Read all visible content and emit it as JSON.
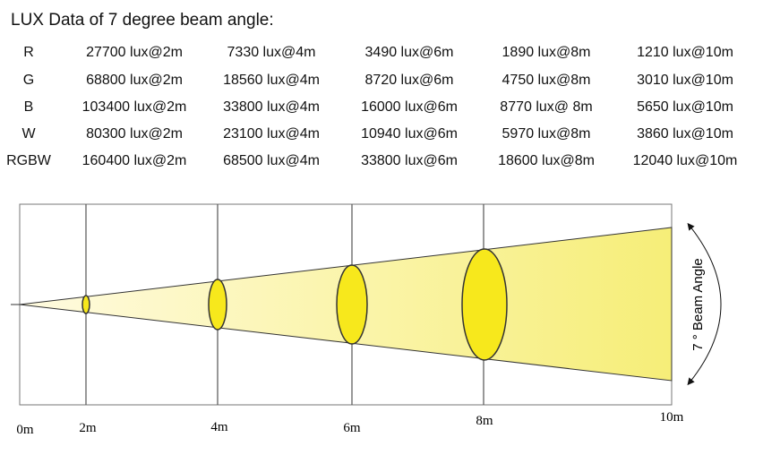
{
  "header": {
    "title": "LUX Data of 7 degree beam angle:"
  },
  "table": {
    "rows": [
      [
        "R",
        "27700 lux@2m",
        "7330 lux@4m",
        "3490 lux@6m",
        "1890 lux@8m",
        "1210 lux@10m"
      ],
      [
        "G",
        "68800 lux@2m",
        "18560 lux@4m",
        "8720 lux@6m",
        "4750 lux@8m",
        "3010 lux@10m"
      ],
      [
        "B",
        "103400 lux@2m",
        "33800 lux@4m",
        "16000 lux@6m",
        "8770 lux@ 8m",
        "5650 lux@10m"
      ],
      [
        "W",
        "80300 lux@2m",
        "23100 lux@4m",
        "10940 lux@6m",
        "5970 lux@8m",
        "3860 lux@10m"
      ],
      [
        "RGBW",
        "160400 lux@2m",
        "68500 lux@4m",
        "33800 lux@6m",
        "18600 lux@8m",
        "12040 lux@10m"
      ]
    ]
  },
  "diagram": {
    "distances": [
      "0m",
      "2m",
      "4m",
      "6m",
      "8m",
      "10m"
    ],
    "beam_label": "7 ° Beam Angle"
  }
}
